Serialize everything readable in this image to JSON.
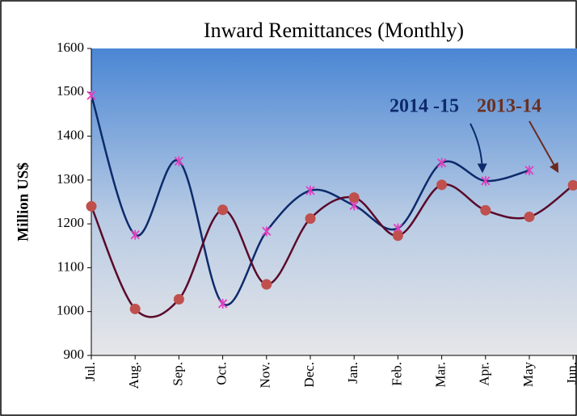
{
  "chart_data": {
    "type": "line",
    "title": "Inward Remittances (Monthly)",
    "y_label": "Million US$",
    "categories": [
      "Jul.",
      "Aug.",
      "Sep.",
      "Oct.",
      "Nov.",
      "Dec.",
      "Jan.",
      "Feb.",
      "Mar.",
      "Apr.",
      "May",
      "Jun."
    ],
    "series": [
      {
        "name": "2014 -15",
        "color": "#0d2a6b",
        "marker": "star",
        "marker_color": "#e040c0",
        "values": [
          1493,
          1175,
          1343,
          1018,
          1183,
          1276,
          1242,
          1190,
          1339,
          1298,
          1322,
          null
        ]
      },
      {
        "name": "2013-14",
        "color": "#5a0a2a",
        "marker": "circle",
        "marker_color": "#c0504d",
        "values": [
          1240,
          1006,
          1028,
          1232,
          1062,
          1212,
          1260,
          1173,
          1289,
          1231,
          1216,
          1288
        ]
      }
    ],
    "ylim": [
      900,
      1600
    ],
    "yticks": [
      900,
      1000,
      1100,
      1200,
      1300,
      1400,
      1500,
      1600
    ]
  }
}
